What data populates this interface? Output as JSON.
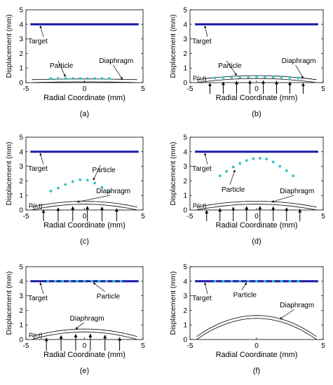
{
  "axis_common": {
    "xlabel": "Radial Coordinate (mm)",
    "ylabel": "Displacement (mm)",
    "xlim": [
      -4,
      4
    ],
    "ylim": [
      0,
      5
    ],
    "xticks": [
      -5,
      0,
      5
    ],
    "yticks": [
      0,
      1,
      2,
      3,
      4,
      5
    ],
    "target_color": "#1a1aa8",
    "particle_color": "#2ec4c4",
    "target_label": "Target",
    "particle_label": "Particle",
    "diaphragm_label": "Diaphragm",
    "pressure_label": "P(r,t)"
  },
  "chart_data": [
    {
      "type": "line",
      "panel_label": "(a)",
      "target_y": 4,
      "particles": {
        "x": [
          -2.3,
          -1.8,
          -1.3,
          -0.8,
          -0.3,
          0.2,
          0.7,
          1.2,
          1.7
        ],
        "y": [
          0.28,
          0.28,
          0.28,
          0.28,
          0.28,
          0.28,
          0.28,
          0.28,
          0.28
        ]
      },
      "diaphragm_peak": 0.05,
      "pressure_arrows": []
    },
    {
      "type": "line",
      "panel_label": "(b)",
      "target_y": 4,
      "particles": {
        "x": [
          -2.5,
          -2.0,
          -1.5,
          -1.0,
          -0.5,
          0,
          0.5,
          1.0,
          1.5,
          2.0,
          2.5
        ],
        "y": [
          0.32,
          0.34,
          0.36,
          0.38,
          0.39,
          0.4,
          0.39,
          0.38,
          0.36,
          0.34,
          0.32
        ]
      },
      "diaphragm_peak": 0.28,
      "pressure_arrows": [
        -2.8,
        -2.0,
        -1.2,
        -0.4,
        0.4,
        1.2,
        2.0,
        2.8
      ]
    },
    {
      "type": "line",
      "panel_label": "(c)",
      "target_y": 4,
      "particles": {
        "x": [
          -2.3,
          -1.8,
          -1.3,
          -0.8,
          -0.3,
          0.2,
          0.7,
          1.2,
          1.7
        ],
        "y": [
          1.3,
          1.5,
          1.75,
          1.95,
          2.08,
          2.05,
          1.85,
          1.55,
          1.25
        ]
      },
      "diaphragm_peak": 0.4,
      "pressure_arrows": [
        -2.8,
        -1.8,
        -0.8,
        0.2,
        1.2,
        2.2
      ]
    },
    {
      "type": "line",
      "panel_label": "(d)",
      "target_y": 4,
      "particles": {
        "x": [
          -2.2,
          -1.8,
          -1.4,
          -1.0,
          -0.6,
          -0.2,
          0.2,
          0.6,
          1.0,
          1.4,
          1.8,
          2.2
        ],
        "y": [
          2.35,
          2.65,
          2.95,
          3.2,
          3.4,
          3.52,
          3.55,
          3.5,
          3.3,
          3.0,
          2.7,
          2.35
        ]
      },
      "diaphragm_peak": 0.4,
      "pressure_arrows": [
        -3.0,
        -2.2,
        -1.4,
        -0.6,
        0.2,
        1.0,
        1.8,
        2.6
      ]
    },
    {
      "type": "line",
      "panel_label": "(e)",
      "target_y": 4,
      "particles": {
        "x": [
          -2.5,
          -2.0,
          -1.5,
          -1.0,
          -0.5,
          0,
          0.5,
          1.0,
          1.5,
          2.0,
          2.5
        ],
        "y": [
          4,
          4,
          4,
          4,
          4,
          4,
          4,
          4,
          4,
          4,
          4
        ]
      },
      "diaphragm_peak": 0.52,
      "pressure_arrows": [
        -2.6,
        -1.6,
        -0.6,
        0.4,
        1.4,
        2.4
      ]
    },
    {
      "type": "line",
      "panel_label": "(f)",
      "target_y": 4,
      "particles": {
        "x": [
          -2.5,
          -2.0,
          -1.5,
          -1.0,
          -0.5,
          0,
          0.5,
          1.0,
          1.5,
          2.0,
          2.5
        ],
        "y": [
          4,
          4,
          4,
          4,
          4,
          4,
          4,
          4,
          4,
          4,
          4
        ]
      },
      "diaphragm_peak": 1.45,
      "pressure_arrows": []
    }
  ]
}
